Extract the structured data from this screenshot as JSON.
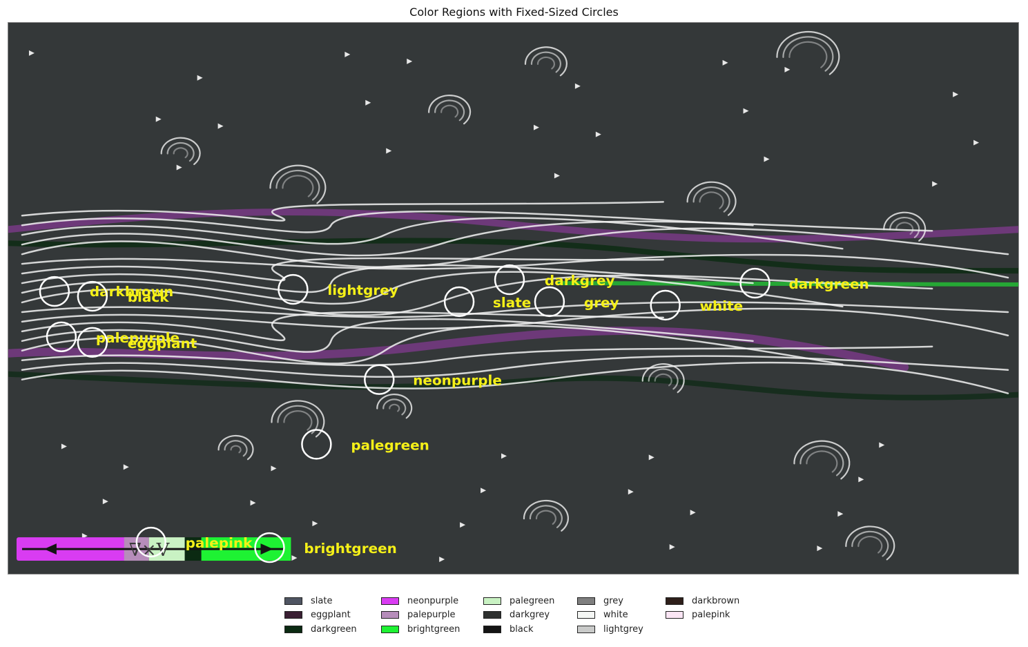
{
  "title": "Color Regions with Fixed-Sized Circles",
  "colors": {
    "background": "#343839",
    "streamline": "#f2f2f2",
    "label": "#f5f018"
  },
  "annotations": [
    {
      "label": "darkbrown"
    },
    {
      "label": "black"
    },
    {
      "label": "lightgrey"
    },
    {
      "label": "slate"
    },
    {
      "label": "darkgrey"
    },
    {
      "label": "grey"
    },
    {
      "label": "white"
    },
    {
      "label": "darkgreen"
    },
    {
      "label": "palepurple"
    },
    {
      "label": "eggplant"
    },
    {
      "label": "neonpurple"
    },
    {
      "label": "palegreen"
    },
    {
      "label": "palepink"
    },
    {
      "label": "brightgreen"
    }
  ],
  "colorbar": {
    "symbol": "∇×V"
  },
  "legend": [
    {
      "name": "slate",
      "color": "#4f5562"
    },
    {
      "name": "eggplant",
      "color": "#3a1f33"
    },
    {
      "name": "darkgreen",
      "color": "#0b2a12"
    },
    {
      "name": "neonpurple",
      "color": "#d93cf2"
    },
    {
      "name": "palepurple",
      "color": "#b68dba"
    },
    {
      "name": "brightgreen",
      "color": "#1ef233"
    },
    {
      "name": "palegreen",
      "color": "#c9f2c3"
    },
    {
      "name": "darkgrey",
      "color": "#2e302f"
    },
    {
      "name": "black",
      "color": "#141414"
    },
    {
      "name": "grey",
      "color": "#7f7f7f"
    },
    {
      "name": "white",
      "color": "#f5f7f5"
    },
    {
      "name": "lightgrey",
      "color": "#c9cac9"
    },
    {
      "name": "darkbrown",
      "color": "#2e1f1a"
    },
    {
      "name": "palepink",
      "color": "#fbe6f5"
    }
  ]
}
